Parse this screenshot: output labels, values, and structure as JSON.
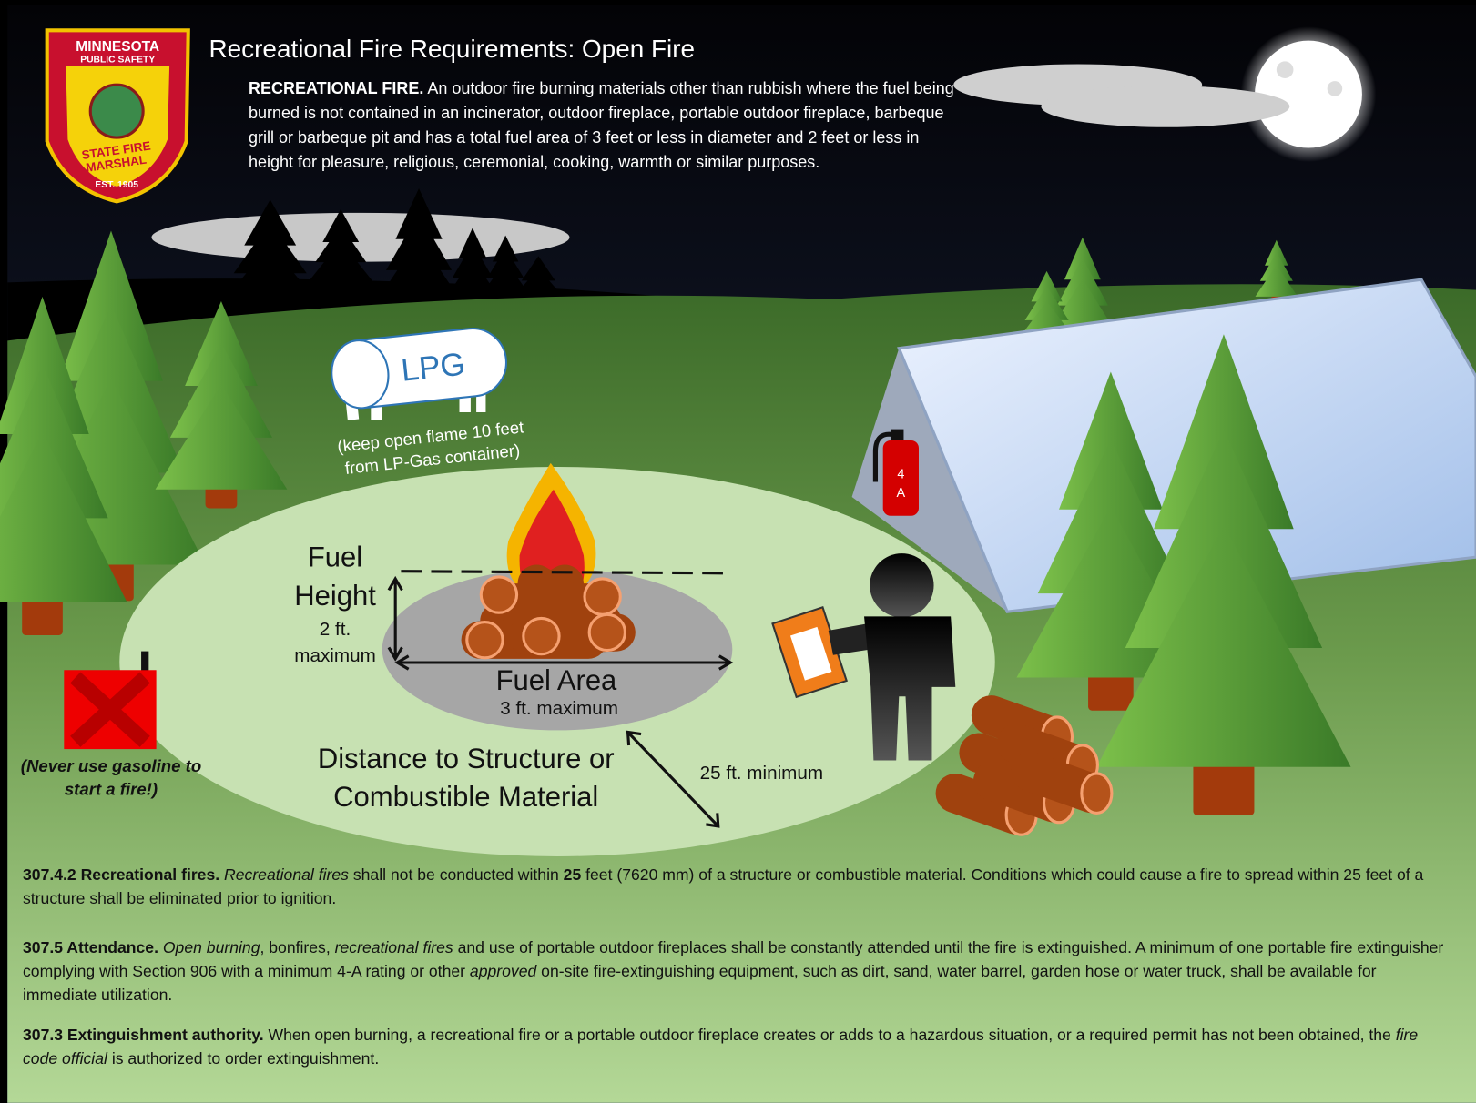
{
  "header": {
    "title": "Recreational Fire Requirements: Open Fire",
    "definition": [
      "RECREATIONAL FIRE.",
      "An outdoor fire burning materials other than rubbish where the fuel being burned is not contained in an incinerator, outdoor fireplace, portable outdoor fireplace, barbeque grill or barbeque pit and has a total fuel area of 3 feet or less in diameter and 2 feet or less in height for pleasure, religious, ceremonial, cooking, warmth or similar purposes."
    ]
  },
  "logo": [
    "MINNESOTA",
    "PUBLIC SAFETY",
    "STATE FIRE",
    "MARSHAL",
    "EST. 1905"
  ],
  "illustration": {
    "lpg": {
      "label": "LPG",
      "note": [
        "(keep open flame 10 feet",
        "from LP-Gas container)"
      ]
    },
    "fuel_height": [
      "Fuel",
      "Height",
      "2 ft.",
      "maximum"
    ],
    "fuel_area": [
      "Fuel Area",
      "3 ft. maximum"
    ],
    "distance": [
      "Distance to Structure or",
      "Combustible Material"
    ],
    "distance_min": "25 ft. minimum",
    "gasoline_warning": [
      "(Never use gasoline to",
      "start a fire!)"
    ],
    "extinguisher": [
      "4",
      "A"
    ]
  },
  "rules": [
    [
      "307.4.2 Recreational fires.",
      "Recreational fires",
      "shall not be conducted within",
      "25",
      "feet (7620 mm) of a structure or combustible material. Conditions which could cause a fire to spread within 25 feet of a structure shall be eliminated prior to ignition."
    ],
    [
      "307.5 Attendance.",
      "Open burning",
      ", bonfires,",
      "recreational fires",
      "and use of portable outdoor fireplaces shall be constantly attended until the fire is extinguished. A minimum of one portable fire extinguisher complying with Section 906 with a minimum 4-A rating or other",
      "approved",
      "on-site fire-extinguishing equipment, such as dirt, sand, water barrel, garden hose or water truck, shall be available for immediate utilization."
    ],
    [
      "307.3 Extinguishment authority.",
      "When open burning, a recreational fire or a portable outdoor fireplace creates or adds to a hazardous situation, or a required permit has not been obtained, the",
      "fire code official",
      "is authorized to order extinguishment."
    ]
  ]
}
